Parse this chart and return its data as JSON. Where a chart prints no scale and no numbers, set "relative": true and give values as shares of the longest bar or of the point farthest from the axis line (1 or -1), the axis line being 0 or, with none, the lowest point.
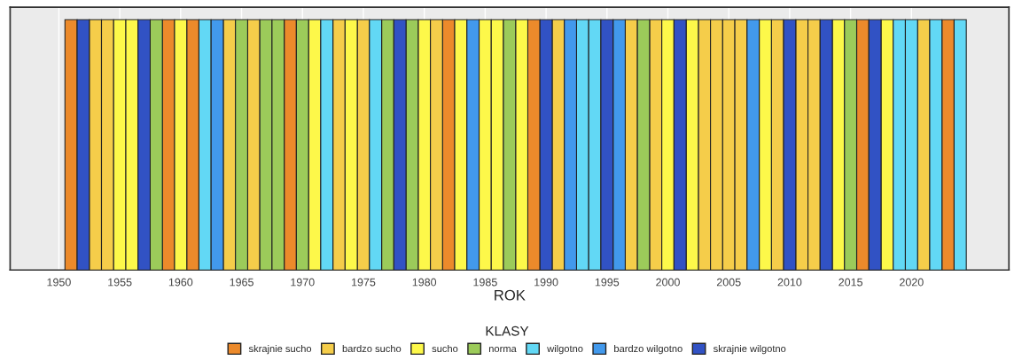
{
  "chart_data": {
    "type": "bar",
    "relative": true,
    "xlabel": "ROK",
    "legend_title": "KLASY",
    "legend": "bottom",
    "grid": "x",
    "x": [
      1951,
      1952,
      1953,
      1954,
      1955,
      1956,
      1957,
      1958,
      1959,
      1960,
      1961,
      1962,
      1963,
      1964,
      1965,
      1966,
      1967,
      1968,
      1969,
      1970,
      1971,
      1972,
      1973,
      1974,
      1975,
      1976,
      1977,
      1978,
      1979,
      1980,
      1981,
      1982,
      1983,
      1984,
      1985,
      1986,
      1987,
      1988,
      1989,
      1990,
      1991,
      1992,
      1993,
      1994,
      1995,
      1996,
      1997,
      1998,
      1999,
      2000,
      2001,
      2002,
      2003,
      2004,
      2005,
      2006,
      2007,
      2008,
      2009,
      2010,
      2011,
      2012,
      2013,
      2014,
      2015,
      2016,
      2017,
      2018,
      2019,
      2020,
      2021,
      2022,
      2023,
      2024
    ],
    "xlim": [
      1946,
      2028
    ],
    "xticks": [
      1950,
      1955,
      1960,
      1965,
      1970,
      1975,
      1980,
      1985,
      1990,
      1995,
      2000,
      2005,
      2010,
      2015,
      2020
    ],
    "series": [
      {
        "name": "skrajnie sucho",
        "color": "#ec8a2b",
        "values": [
          1,
          null,
          null,
          null,
          null,
          null,
          null,
          null,
          1,
          null,
          1,
          null,
          null,
          null,
          null,
          null,
          null,
          null,
          1,
          null,
          null,
          null,
          null,
          null,
          null,
          null,
          null,
          null,
          null,
          null,
          null,
          1,
          null,
          null,
          null,
          null,
          null,
          null,
          1,
          null,
          null,
          null,
          null,
          null,
          null,
          null,
          null,
          null,
          null,
          null,
          null,
          null,
          null,
          null,
          null,
          null,
          null,
          null,
          null,
          null,
          null,
          null,
          null,
          null,
          null,
          1,
          null,
          null,
          null,
          null,
          null,
          null,
          1,
          null
        ]
      },
      {
        "name": "bardzo sucho",
        "color": "#f5cd4a",
        "values": [
          null,
          null,
          1,
          1,
          null,
          null,
          null,
          null,
          null,
          null,
          null,
          null,
          null,
          1,
          null,
          1,
          null,
          null,
          null,
          null,
          null,
          null,
          1,
          null,
          1,
          null,
          null,
          null,
          null,
          null,
          1,
          null,
          null,
          null,
          null,
          null,
          null,
          null,
          null,
          null,
          1,
          null,
          null,
          null,
          null,
          null,
          1,
          null,
          1,
          null,
          null,
          null,
          1,
          1,
          1,
          1,
          null,
          null,
          1,
          null,
          1,
          1,
          null,
          null,
          null,
          null,
          null,
          null,
          null,
          null,
          1,
          null,
          null,
          null
        ]
      },
      {
        "name": "sucho",
        "color": "#fdf84a",
        "values": [
          null,
          null,
          null,
          null,
          1,
          1,
          null,
          null,
          null,
          1,
          null,
          null,
          null,
          null,
          null,
          null,
          null,
          null,
          null,
          null,
          1,
          null,
          null,
          1,
          null,
          null,
          null,
          null,
          null,
          1,
          null,
          null,
          1,
          null,
          1,
          1,
          null,
          1,
          null,
          null,
          null,
          null,
          null,
          null,
          null,
          null,
          null,
          null,
          null,
          1,
          null,
          1,
          null,
          null,
          null,
          null,
          null,
          1,
          null,
          null,
          null,
          null,
          null,
          1,
          null,
          null,
          null,
          1,
          null,
          null,
          null,
          null,
          null,
          null
        ]
      },
      {
        "name": "norma",
        "color": "#9ccb5a",
        "values": [
          null,
          null,
          null,
          null,
          null,
          null,
          null,
          1,
          null,
          null,
          null,
          null,
          null,
          null,
          1,
          null,
          1,
          1,
          null,
          1,
          null,
          null,
          null,
          null,
          null,
          null,
          1,
          null,
          1,
          null,
          null,
          null,
          null,
          null,
          null,
          null,
          1,
          null,
          null,
          null,
          null,
          null,
          null,
          null,
          null,
          null,
          null,
          1,
          null,
          null,
          null,
          null,
          null,
          null,
          null,
          null,
          null,
          null,
          null,
          null,
          null,
          null,
          null,
          null,
          1,
          null,
          null,
          null,
          null,
          null,
          null,
          null,
          null,
          null
        ]
      },
      {
        "name": "wilgotno",
        "color": "#62d8f5",
        "values": [
          null,
          null,
          null,
          null,
          null,
          null,
          null,
          null,
          null,
          null,
          null,
          1,
          null,
          null,
          null,
          null,
          null,
          null,
          null,
          null,
          null,
          1,
          null,
          null,
          null,
          1,
          null,
          null,
          null,
          null,
          null,
          null,
          null,
          null,
          null,
          null,
          null,
          null,
          null,
          null,
          null,
          null,
          1,
          1,
          null,
          null,
          null,
          null,
          null,
          null,
          null,
          null,
          null,
          null,
          null,
          null,
          null,
          null,
          null,
          null,
          null,
          null,
          null,
          null,
          null,
          null,
          null,
          null,
          1,
          1,
          null,
          1,
          null,
          1
        ]
      },
      {
        "name": "bardzo wilgotno",
        "color": "#4299ec",
        "values": [
          null,
          null,
          null,
          null,
          null,
          null,
          null,
          null,
          null,
          null,
          null,
          null,
          1,
          null,
          null,
          null,
          null,
          null,
          null,
          null,
          null,
          null,
          null,
          null,
          null,
          null,
          null,
          null,
          null,
          null,
          null,
          null,
          null,
          1,
          null,
          null,
          null,
          null,
          null,
          null,
          null,
          1,
          null,
          null,
          null,
          1,
          null,
          null,
          null,
          null,
          null,
          null,
          null,
          null,
          null,
          null,
          1,
          null,
          null,
          null,
          null,
          null,
          null,
          null,
          null,
          null,
          null,
          null,
          null,
          null,
          null,
          null,
          null,
          null
        ]
      },
      {
        "name": "skrajnie wilgotno",
        "color": "#3152c4",
        "values": [
          null,
          1,
          null,
          null,
          null,
          null,
          1,
          null,
          null,
          null,
          null,
          null,
          null,
          null,
          null,
          null,
          null,
          null,
          null,
          null,
          null,
          null,
          null,
          null,
          null,
          null,
          null,
          1,
          null,
          null,
          null,
          null,
          null,
          null,
          null,
          null,
          null,
          null,
          null,
          1,
          null,
          null,
          null,
          null,
          1,
          null,
          null,
          null,
          null,
          null,
          1,
          null,
          null,
          null,
          null,
          null,
          null,
          null,
          null,
          1,
          null,
          null,
          1,
          null,
          null,
          null,
          1,
          null,
          null,
          null,
          null,
          null,
          null,
          null
        ]
      }
    ]
  }
}
